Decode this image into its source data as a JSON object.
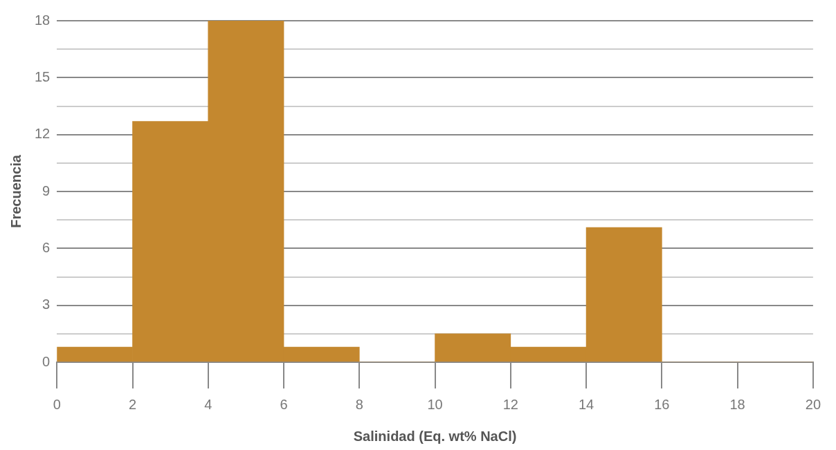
{
  "chart_data": {
    "type": "histogram",
    "xlabel": "Salinidad (Eq. wt% NaCl)",
    "ylabel": "Frecuencia",
    "bins": [
      0,
      2,
      4,
      6,
      8,
      10,
      12,
      14,
      16,
      18,
      20
    ],
    "values": [
      0.8,
      12.7,
      18,
      0.8,
      0,
      1.5,
      0.8,
      7.1,
      0,
      0
    ],
    "color": "#c4882f",
    "xlim": [
      0,
      20
    ],
    "xticks": [
      0,
      2,
      4,
      6,
      8,
      10,
      12,
      14,
      16,
      18,
      20
    ],
    "ylim": [
      0,
      18
    ],
    "yticks": [
      0,
      {
        "value": 1.5,
        "label": null
      },
      3,
      {
        "value": 4.5,
        "label": null
      },
      6,
      {
        "value": 7.5,
        "label": null
      },
      9,
      {
        "value": 10.5,
        "label": null
      },
      12,
      {
        "value": 13.5,
        "label": null
      },
      15,
      {
        "value": 16.5,
        "label": null
      },
      18
    ],
    "grid": "y",
    "legend": false
  }
}
